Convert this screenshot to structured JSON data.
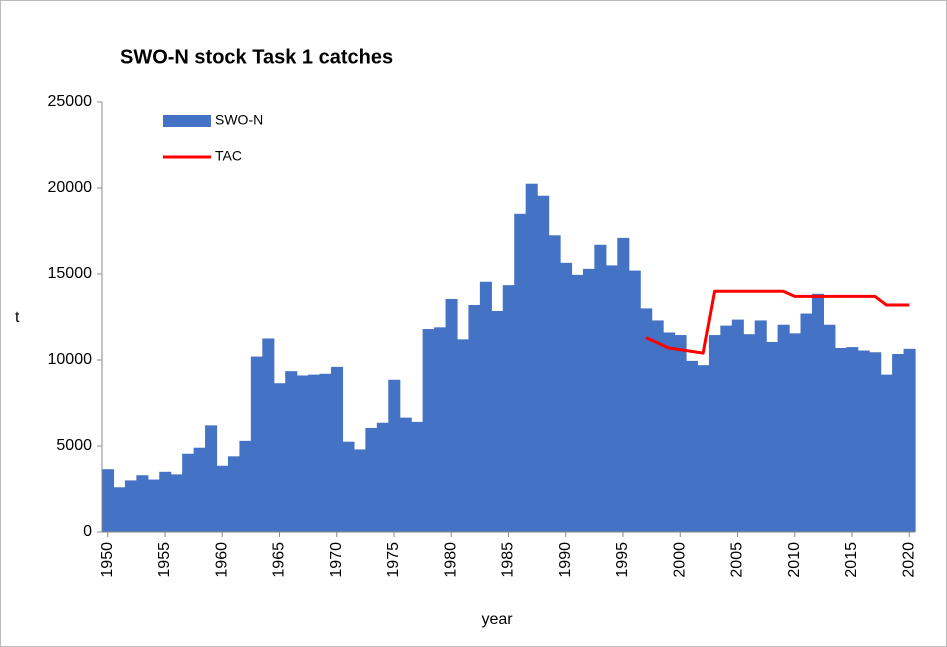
{
  "chart_data": {
    "type": "bar",
    "title": "SWO-N stock Task 1 catches",
    "x_label": "year",
    "y_label": "t",
    "x": [
      1950,
      1951,
      1952,
      1953,
      1954,
      1955,
      1956,
      1957,
      1958,
      1959,
      1960,
      1961,
      1962,
      1963,
      1964,
      1965,
      1966,
      1967,
      1968,
      1969,
      1970,
      1971,
      1972,
      1973,
      1974,
      1975,
      1976,
      1977,
      1978,
      1979,
      1980,
      1981,
      1982,
      1983,
      1984,
      1985,
      1986,
      1987,
      1988,
      1989,
      1990,
      1991,
      1992,
      1993,
      1994,
      1995,
      1996,
      1997,
      1998,
      1999,
      2000,
      2001,
      2002,
      2003,
      2004,
      2005,
      2006,
      2007,
      2008,
      2009,
      2010,
      2011,
      2012,
      2013,
      2014,
      2015,
      2016,
      2017,
      2018,
      2019,
      2020
    ],
    "series": [
      {
        "name": "SWO-N",
        "type": "bar",
        "color": "#4472c4",
        "values": [
          3650,
          2600,
          3000,
          3300,
          3050,
          3500,
          3350,
          4550,
          4900,
          6200,
          3850,
          4400,
          5300,
          10200,
          11250,
          8650,
          9350,
          9100,
          9150,
          9200,
          9600,
          5250,
          4800,
          6050,
          6350,
          8850,
          6650,
          6400,
          11800,
          11900,
          13550,
          11200,
          13200,
          14550,
          12850,
          14350,
          18500,
          20250,
          19550,
          17250,
          15650,
          14950,
          15300,
          16700,
          15500,
          17100,
          15200,
          13000,
          12300,
          11600,
          11450,
          9950,
          9700,
          11450,
          12000,
          12350,
          11500,
          12300,
          11050,
          12050,
          11550,
          12700,
          13850,
          12050,
          10700,
          10750,
          10550,
          10450,
          9150,
          10350,
          10650
        ]
      },
      {
        "name": "TAC",
        "type": "line",
        "color": "#ff0000",
        "values": [
          null,
          null,
          null,
          null,
          null,
          null,
          null,
          null,
          null,
          null,
          null,
          null,
          null,
          null,
          null,
          null,
          null,
          null,
          null,
          null,
          null,
          null,
          null,
          null,
          null,
          null,
          null,
          null,
          null,
          null,
          null,
          null,
          null,
          null,
          null,
          null,
          null,
          null,
          null,
          null,
          null,
          null,
          null,
          null,
          null,
          null,
          null,
          11300,
          11000,
          10700,
          10600,
          10500,
          10400,
          14000,
          14000,
          14000,
          14000,
          14000,
          14000,
          14000,
          13700,
          13700,
          13700,
          13700,
          13700,
          13700,
          13700,
          13700,
          13200,
          13200,
          13200
        ]
      }
    ],
    "xlim": [
      1949.5,
      2020.5
    ],
    "xticks": [
      1950,
      1955,
      1960,
      1965,
      1970,
      1975,
      1980,
      1985,
      1990,
      1995,
      2000,
      2005,
      2010,
      2015,
      2020
    ],
    "ylim": [
      0,
      25000
    ],
    "yticks": [
      0,
      5000,
      10000,
      15000,
      20000,
      25000
    ],
    "grid": false,
    "legend": "top-left"
  }
}
